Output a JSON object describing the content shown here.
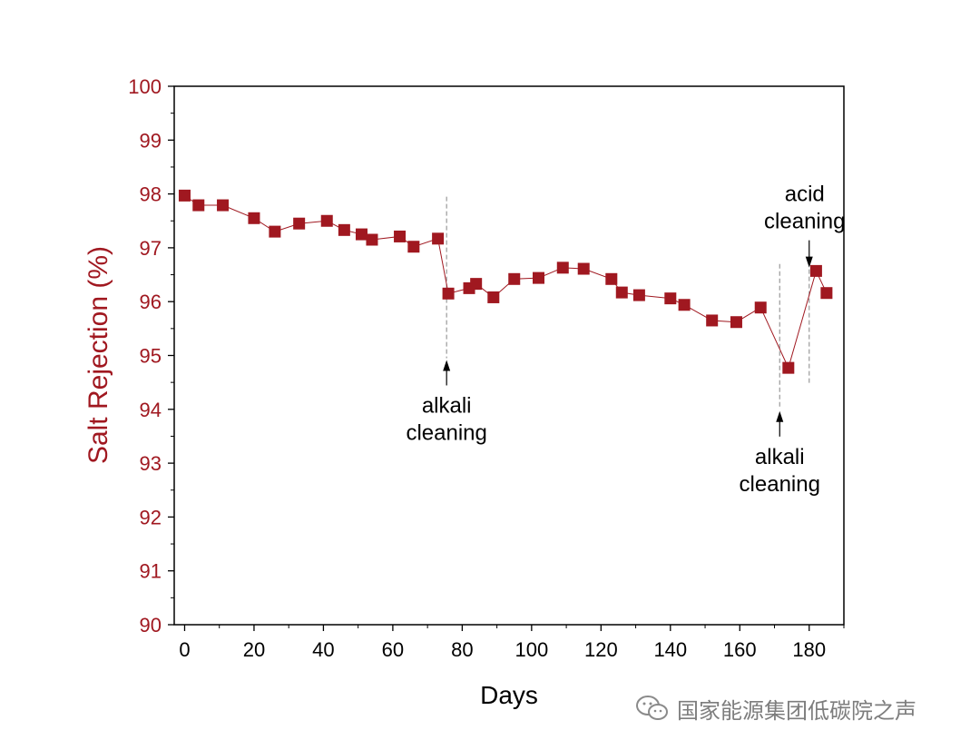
{
  "chart_data": {
    "type": "scatter",
    "xlabel": "Days",
    "ylabel": "Salt Rejection (%)",
    "xlim": [
      -3,
      190
    ],
    "ylim": [
      90,
      100
    ],
    "x_ticks": [
      0,
      20,
      40,
      60,
      80,
      100,
      120,
      140,
      160,
      180
    ],
    "y_ticks": [
      90,
      91,
      92,
      93,
      94,
      95,
      96,
      97,
      98,
      99,
      100
    ],
    "grid": false,
    "legend": "none",
    "colors": {
      "marker": "#a01820",
      "line": "#a01820",
      "axis_text": "#a01820",
      "axes": "#000000",
      "guide": "#999999"
    },
    "series": [
      {
        "x": [
          0,
          4,
          11,
          20,
          26,
          33,
          41,
          46,
          51,
          54,
          62,
          66,
          73,
          76,
          82,
          84,
          89,
          95,
          102,
          109,
          115,
          123,
          126,
          131,
          140,
          144,
          152,
          159,
          166,
          174,
          182,
          185
        ],
        "y": [
          97.97,
          97.79,
          97.79,
          97.55,
          97.3,
          97.45,
          97.5,
          97.33,
          97.25,
          97.15,
          97.21,
          97.02,
          97.17,
          96.15,
          96.25,
          96.33,
          96.08,
          96.42,
          96.44,
          96.63,
          96.61,
          96.42,
          96.17,
          96.12,
          96.06,
          95.94,
          95.65,
          95.62,
          95.89,
          94.77,
          96.57,
          96.16
        ]
      }
    ],
    "annotations": [
      {
        "lines": [
          "alkali",
          "cleaning"
        ],
        "x": 75.5,
        "arrow": "up",
        "line_y": [
          97.95,
          94.95
        ]
      },
      {
        "lines": [
          "alkali",
          "cleaning"
        ],
        "x": 171.5,
        "arrow": "up",
        "line_y": [
          96.7,
          94.0
        ]
      },
      {
        "lines": [
          "acid",
          "cleaning"
        ],
        "x": 180,
        "arrow": "down",
        "line_y": [
          96.6,
          94.45
        ]
      }
    ]
  },
  "watermark": {
    "text": "国家能源集团低碳院之声",
    "icon": "wechat-icon"
  }
}
